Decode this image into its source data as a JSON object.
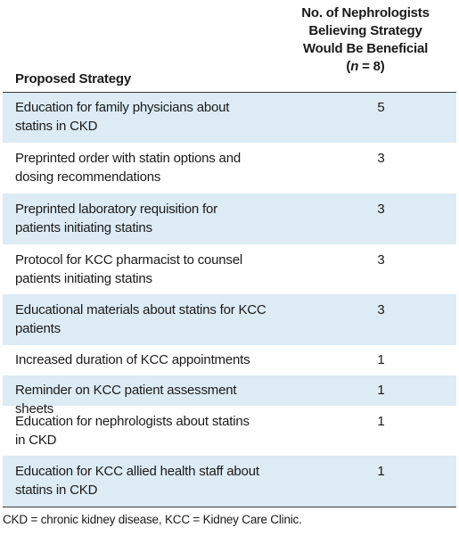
{
  "header": {
    "strategy_label": "Proposed Strategy",
    "count_line1": "No. of Nephrologists",
    "count_line2": "Believing Strategy",
    "count_line3": "Would Be Beneficial",
    "count_open": "(",
    "count_n": "n",
    "count_close": " = 8)"
  },
  "rows": [
    {
      "l1": "Education for family physicians about",
      "l2": "statins in CKD",
      "value": "5"
    },
    {
      "l1": "Preprinted order with statin options and",
      "l2": "dosing recommendations",
      "value": "3"
    },
    {
      "l1": "Preprinted laboratory requisition for",
      "l2": "patients initiating statins",
      "value": "3"
    },
    {
      "l1": "Protocol for KCC pharmacist to counsel",
      "l2": "patients initiating statins",
      "value": "3"
    },
    {
      "l1": "Educational materials about statins for KCC",
      "l2": "patients",
      "value": "3"
    },
    {
      "l1": "Increased duration of KCC appointments",
      "value": "1"
    },
    {
      "l1": "Reminder on KCC patient assessment sheets",
      "value": "1"
    },
    {
      "l1": "Education for nephrologists about statins",
      "l2": "in CKD",
      "value": "1"
    },
    {
      "l1": "Education for KCC allied health staff about",
      "l2": "statins in CKD",
      "value": "1"
    }
  ],
  "footnote": "CKD = chronic kidney disease, KCC = Kidney Care Clinic.",
  "colors": {
    "row_shade": "#dcebf4",
    "rule": "#3a3a3a"
  }
}
